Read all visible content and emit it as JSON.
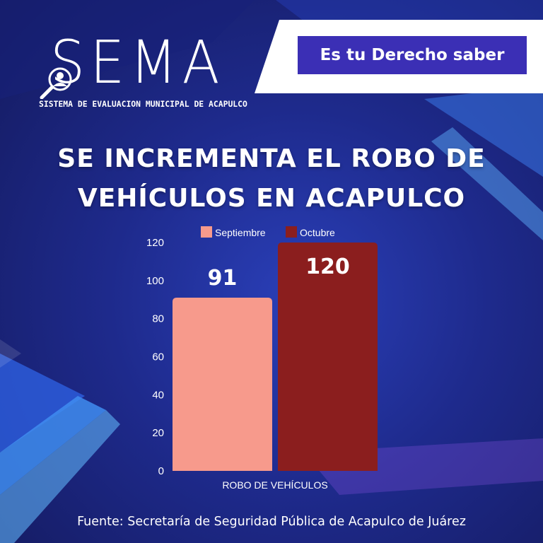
{
  "brand": {
    "logo_word": "SEMA",
    "logo_subtitle": "SISTEMA DE EVALUACION MUNICIPAL DE ACAPULCO",
    "logo_icon": "magnifier-person-icon"
  },
  "tagline": "Es tu Derecho saber",
  "headline": {
    "line1": "SE INCREMENTA EL ROBO DE",
    "line2": "VEHÍCULOS EN ACAPULCO"
  },
  "source": "Fuente: Secretaría de Seguridad Pública de Acapulco de Juárez",
  "colors": {
    "background": "#1e2a8c",
    "accent_box": "#3b2fb5",
    "septiembre": "#f79a8c",
    "octubre": "#8b1e1e"
  },
  "chart_data": {
    "type": "bar",
    "title": "",
    "categories": [
      "ROBO DE VEHÍCULOS"
    ],
    "series": [
      {
        "name": "Septiembre",
        "values": [
          91
        ],
        "color": "#f79a8c",
        "label": "91"
      },
      {
        "name": "Octubre",
        "values": [
          120
        ],
        "color": "#8b1e1e",
        "label": "120"
      }
    ],
    "xlabel": "",
    "ylabel": "",
    "ylim": [
      0,
      120
    ],
    "yticks": [
      "0",
      "20",
      "40",
      "60",
      "80",
      "100",
      "120"
    ],
    "legend": "top",
    "grid": false
  }
}
